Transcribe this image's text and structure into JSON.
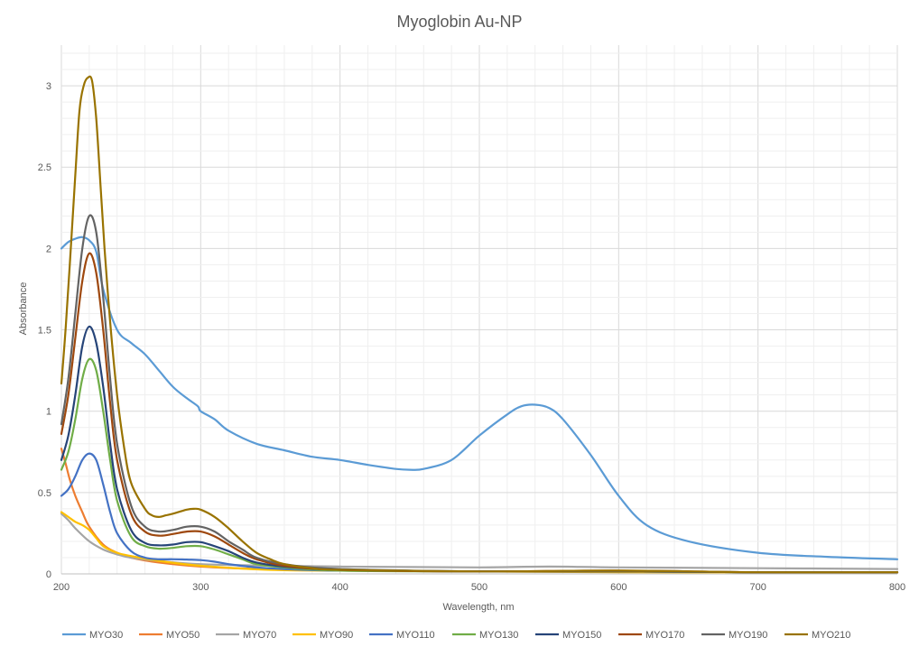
{
  "chart_data": {
    "type": "line",
    "title": "Myoglobin Au-NP",
    "xlabel": "Wavelength, nm",
    "ylabel": "Absorbance",
    "xlim": [
      200,
      800
    ],
    "ylim": [
      0,
      3.25
    ],
    "xticks": [
      200,
      300,
      400,
      500,
      600,
      700,
      800
    ],
    "xtick_labels": [
      "200",
      "300",
      "400",
      "500",
      "600",
      "700",
      "800"
    ],
    "yticks": [
      0,
      0.5,
      1,
      1.5,
      2,
      2.5,
      3
    ],
    "ytick_labels": [
      "0",
      "0.5",
      "1",
      "1.5",
      "2",
      "2.5",
      "3"
    ],
    "grid": true,
    "legend_position": "bottom",
    "series": [
      {
        "name": "MYO30",
        "color": "#5b9bd5",
        "x": [
          200,
          205,
          210,
          215,
          220,
          225,
          230,
          240,
          250,
          260,
          270,
          280,
          290,
          298,
          300,
          310,
          320,
          340,
          360,
          380,
          400,
          420,
          440,
          450,
          460,
          480,
          500,
          520,
          530,
          540,
          550,
          560,
          580,
          600,
          620,
          650,
          700,
          750,
          800
        ],
        "y": [
          2.0,
          2.04,
          2.06,
          2.07,
          2.05,
          1.98,
          1.75,
          1.5,
          1.42,
          1.35,
          1.25,
          1.15,
          1.08,
          1.03,
          1.0,
          0.95,
          0.88,
          0.8,
          0.76,
          0.72,
          0.7,
          0.67,
          0.645,
          0.64,
          0.645,
          0.7,
          0.85,
          0.98,
          1.03,
          1.04,
          1.02,
          0.95,
          0.73,
          0.48,
          0.3,
          0.2,
          0.13,
          0.105,
          0.09
        ]
      },
      {
        "name": "MYO50",
        "color": "#ed7d31",
        "x": [
          200,
          203,
          206,
          210,
          215,
          220,
          230,
          240,
          250,
          270,
          300,
          340,
          400,
          500,
          600,
          700,
          800
        ],
        "y": [
          0.77,
          0.68,
          0.58,
          0.48,
          0.38,
          0.29,
          0.18,
          0.13,
          0.1,
          0.07,
          0.045,
          0.03,
          0.02,
          0.015,
          0.015,
          0.01,
          0.01
        ]
      },
      {
        "name": "MYO70",
        "color": "#a5a5a5",
        "x": [
          200,
          205,
          210,
          220,
          230,
          240,
          250,
          270,
          300,
          350,
          400,
          450,
          500,
          550,
          600,
          700,
          800
        ],
        "y": [
          0.37,
          0.33,
          0.28,
          0.2,
          0.15,
          0.12,
          0.1,
          0.08,
          0.06,
          0.05,
          0.045,
          0.042,
          0.04,
          0.045,
          0.04,
          0.035,
          0.03
        ]
      },
      {
        "name": "MYO90",
        "color": "#ffc000",
        "x": [
          200,
          205,
          210,
          215,
          220,
          225,
          230,
          240,
          250,
          270,
          300,
          350,
          400,
          500,
          600,
          700,
          800
        ],
        "y": [
          0.38,
          0.35,
          0.32,
          0.3,
          0.27,
          0.22,
          0.17,
          0.13,
          0.11,
          0.08,
          0.05,
          0.025,
          0.02,
          0.015,
          0.01,
          0.01,
          0.01
        ]
      },
      {
        "name": "MYO110",
        "color": "#4472c4",
        "x": [
          200,
          205,
          210,
          215,
          220,
          225,
          230,
          235,
          240,
          250,
          260,
          270,
          280,
          290,
          300,
          310,
          320,
          340,
          360,
          400,
          500,
          600,
          700,
          800
        ],
        "y": [
          0.48,
          0.52,
          0.6,
          0.7,
          0.74,
          0.7,
          0.55,
          0.38,
          0.25,
          0.14,
          0.1,
          0.09,
          0.09,
          0.088,
          0.085,
          0.075,
          0.06,
          0.04,
          0.03,
          0.02,
          0.015,
          0.015,
          0.01,
          0.01
        ]
      },
      {
        "name": "MYO130",
        "color": "#70ad47",
        "x": [
          200,
          205,
          210,
          215,
          220,
          225,
          230,
          235,
          240,
          250,
          260,
          270,
          280,
          290,
          300,
          310,
          320,
          330,
          340,
          360,
          400,
          500,
          600,
          700,
          800
        ],
        "y": [
          0.64,
          0.75,
          0.95,
          1.2,
          1.32,
          1.25,
          1.0,
          0.7,
          0.45,
          0.23,
          0.17,
          0.155,
          0.16,
          0.17,
          0.17,
          0.15,
          0.12,
          0.09,
          0.06,
          0.04,
          0.02,
          0.015,
          0.015,
          0.01,
          0.01
        ]
      },
      {
        "name": "MYO150",
        "color": "#264478",
        "x": [
          200,
          205,
          210,
          215,
          220,
          225,
          230,
          235,
          240,
          250,
          260,
          270,
          280,
          290,
          300,
          310,
          320,
          330,
          340,
          360,
          400,
          500,
          600,
          700,
          800
        ],
        "y": [
          0.7,
          0.85,
          1.1,
          1.4,
          1.52,
          1.42,
          1.15,
          0.8,
          0.52,
          0.27,
          0.19,
          0.175,
          0.18,
          0.195,
          0.195,
          0.17,
          0.14,
          0.1,
          0.07,
          0.045,
          0.025,
          0.015,
          0.015,
          0.01,
          0.01
        ]
      },
      {
        "name": "MYO170",
        "color": "#9e480e",
        "x": [
          200,
          205,
          210,
          215,
          220,
          225,
          230,
          235,
          240,
          250,
          260,
          270,
          280,
          290,
          300,
          310,
          320,
          330,
          340,
          360,
          400,
          500,
          600,
          700,
          800
        ],
        "y": [
          0.86,
          1.1,
          1.45,
          1.8,
          1.97,
          1.85,
          1.5,
          1.05,
          0.7,
          0.37,
          0.26,
          0.235,
          0.245,
          0.26,
          0.26,
          0.23,
          0.18,
          0.13,
          0.09,
          0.05,
          0.025,
          0.015,
          0.02,
          0.01,
          0.01
        ]
      },
      {
        "name": "MYO190",
        "color": "#636363",
        "x": [
          200,
          205,
          210,
          215,
          220,
          225,
          230,
          235,
          240,
          250,
          260,
          270,
          280,
          290,
          300,
          310,
          320,
          330,
          340,
          360,
          400,
          500,
          600,
          700,
          800
        ],
        "y": [
          0.92,
          1.2,
          1.6,
          2.0,
          2.2,
          2.1,
          1.7,
          1.2,
          0.8,
          0.42,
          0.29,
          0.26,
          0.27,
          0.29,
          0.29,
          0.26,
          0.2,
          0.15,
          0.1,
          0.06,
          0.03,
          0.015,
          0.015,
          0.01,
          0.01
        ]
      },
      {
        "name": "MYO210",
        "color": "#997300",
        "x": [
          200,
          203,
          206,
          210,
          213,
          216,
          219,
          222,
          225,
          228,
          231,
          235,
          240,
          245,
          250,
          260,
          265,
          270,
          275,
          280,
          290,
          295,
          300,
          310,
          320,
          330,
          340,
          350,
          360,
          380,
          400,
          500,
          600,
          700,
          800
        ],
        "y": [
          1.17,
          1.5,
          1.9,
          2.45,
          2.85,
          3.0,
          3.05,
          3.03,
          2.8,
          2.4,
          2.0,
          1.55,
          1.1,
          0.78,
          0.56,
          0.4,
          0.36,
          0.35,
          0.36,
          0.37,
          0.395,
          0.4,
          0.395,
          0.35,
          0.28,
          0.2,
          0.13,
          0.09,
          0.06,
          0.035,
          0.025,
          0.015,
          0.02,
          0.01,
          0.01
        ]
      }
    ]
  }
}
